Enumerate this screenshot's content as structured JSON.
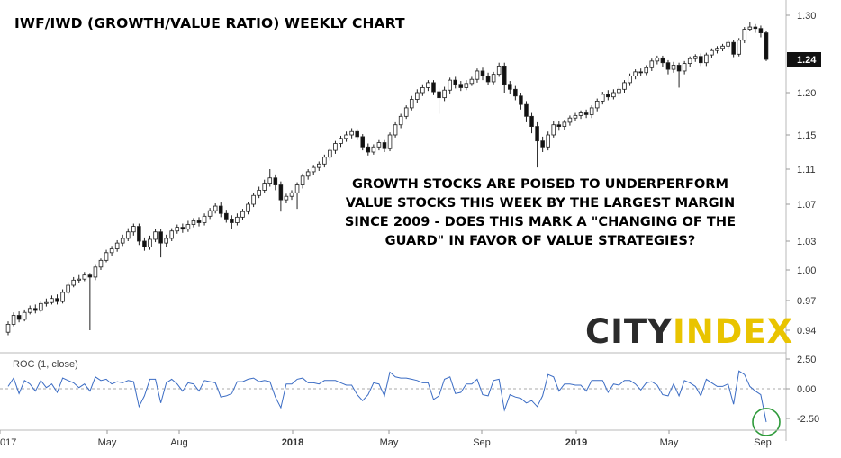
{
  "chart_data": [
    {
      "type": "candlestick",
      "title": "IWF/IWD (GROWTH/VALUE RATIO) WEEKLY CHART",
      "y_ticks": [
        0.94,
        0.97,
        1.0,
        1.03,
        1.07,
        1.11,
        1.15,
        1.2,
        1.3
      ],
      "last_value_label": "1.24",
      "x_ticks": [
        "017",
        "May",
        "Aug",
        "2018",
        "May",
        "Sep",
        "2019",
        "May",
        "Sep"
      ],
      "annotation": [
        "GROWTH STOCKS ARE POISED TO UNDERPERFORM",
        "VALUE STOCKS THIS WEEK BY THE LARGEST MARGIN",
        "SINCE 2009 - DOES THIS MARK A \"CHANGING OF THE",
        "GUARD\" IN FAVOR OF VALUE STRATEGIES?"
      ],
      "logo": {
        "part1": "CITY",
        "part2": "INDEX",
        "color_dark": "#2b2b2b",
        "color_accent": "#e9c400"
      },
      "candles": [
        {
          "o": 0.938,
          "c": 0.946,
          "h": 0.949,
          "l": 0.935
        },
        {
          "o": 0.946,
          "c": 0.955,
          "h": 0.958,
          "l": 0.944
        },
        {
          "o": 0.955,
          "c": 0.951,
          "h": 0.959,
          "l": 0.948
        },
        {
          "o": 0.951,
          "c": 0.958,
          "h": 0.961,
          "l": 0.949
        },
        {
          "o": 0.958,
          "c": 0.962,
          "h": 0.965,
          "l": 0.956
        },
        {
          "o": 0.962,
          "c": 0.96,
          "h": 0.966,
          "l": 0.957
        },
        {
          "o": 0.96,
          "c": 0.967,
          "h": 0.969,
          "l": 0.958
        },
        {
          "o": 0.967,
          "c": 0.968,
          "h": 0.972,
          "l": 0.964
        },
        {
          "o": 0.968,
          "c": 0.972,
          "h": 0.975,
          "l": 0.966
        },
        {
          "o": 0.972,
          "c": 0.969,
          "h": 0.976,
          "l": 0.966
        },
        {
          "o": 0.969,
          "c": 0.978,
          "h": 0.981,
          "l": 0.967
        },
        {
          "o": 0.978,
          "c": 0.985,
          "h": 0.988,
          "l": 0.976
        },
        {
          "o": 0.985,
          "c": 0.99,
          "h": 0.993,
          "l": 0.983
        },
        {
          "o": 0.99,
          "c": 0.991,
          "h": 0.995,
          "l": 0.987
        },
        {
          "o": 0.991,
          "c": 0.995,
          "h": 0.998,
          "l": 0.989
        },
        {
          "o": 0.995,
          "c": 0.993,
          "h": 0.997,
          "l": 0.94
        },
        {
          "o": 0.993,
          "c": 1.003,
          "h": 1.006,
          "l": 0.99
        },
        {
          "o": 1.003,
          "c": 1.01,
          "h": 1.012,
          "l": 1.0
        },
        {
          "o": 1.01,
          "c": 1.018,
          "h": 1.021,
          "l": 1.008
        },
        {
          "o": 1.018,
          "c": 1.022,
          "h": 1.025,
          "l": 1.015
        },
        {
          "o": 1.022,
          "c": 1.028,
          "h": 1.031,
          "l": 1.019
        },
        {
          "o": 1.028,
          "c": 1.033,
          "h": 1.037,
          "l": 1.025
        },
        {
          "o": 1.033,
          "c": 1.04,
          "h": 1.044,
          "l": 1.03
        },
        {
          "o": 1.04,
          "c": 1.046,
          "h": 1.049,
          "l": 1.036
        },
        {
          "o": 1.046,
          "c": 1.03,
          "h": 1.049,
          "l": 1.026
        },
        {
          "o": 1.03,
          "c": 1.024,
          "h": 1.034,
          "l": 1.02
        },
        {
          "o": 1.024,
          "c": 1.032,
          "h": 1.036,
          "l": 1.021
        },
        {
          "o": 1.032,
          "c": 1.04,
          "h": 1.043,
          "l": 1.029
        },
        {
          "o": 1.04,
          "c": 1.028,
          "h": 1.043,
          "l": 1.013
        },
        {
          "o": 1.028,
          "c": 1.033,
          "h": 1.037,
          "l": 1.024
        },
        {
          "o": 1.033,
          "c": 1.041,
          "h": 1.044,
          "l": 1.03
        },
        {
          "o": 1.041,
          "c": 1.045,
          "h": 1.048,
          "l": 1.038
        },
        {
          "o": 1.045,
          "c": 1.043,
          "h": 1.049,
          "l": 1.039
        },
        {
          "o": 1.043,
          "c": 1.048,
          "h": 1.052,
          "l": 1.04
        },
        {
          "o": 1.048,
          "c": 1.052,
          "h": 1.055,
          "l": 1.045
        },
        {
          "o": 1.052,
          "c": 1.05,
          "h": 1.056,
          "l": 1.046
        },
        {
          "o": 1.05,
          "c": 1.057,
          "h": 1.06,
          "l": 1.047
        },
        {
          "o": 1.057,
          "c": 1.063,
          "h": 1.066,
          "l": 1.054
        },
        {
          "o": 1.063,
          "c": 1.068,
          "h": 1.071,
          "l": 1.06
        },
        {
          "o": 1.068,
          "c": 1.06,
          "h": 1.072,
          "l": 1.056
        },
        {
          "o": 1.06,
          "c": 1.054,
          "h": 1.064,
          "l": 1.05
        },
        {
          "o": 1.054,
          "c": 1.05,
          "h": 1.058,
          "l": 1.043
        },
        {
          "o": 1.05,
          "c": 1.056,
          "h": 1.06,
          "l": 1.047
        },
        {
          "o": 1.056,
          "c": 1.062,
          "h": 1.065,
          "l": 1.053
        },
        {
          "o": 1.062,
          "c": 1.07,
          "h": 1.073,
          "l": 1.059
        },
        {
          "o": 1.07,
          "c": 1.08,
          "h": 1.083,
          "l": 1.067
        },
        {
          "o": 1.08,
          "c": 1.086,
          "h": 1.09,
          "l": 1.077
        },
        {
          "o": 1.086,
          "c": 1.094,
          "h": 1.098,
          "l": 1.083
        },
        {
          "o": 1.094,
          "c": 1.1,
          "h": 1.11,
          "l": 1.09
        },
        {
          "o": 1.1,
          "c": 1.092,
          "h": 1.104,
          "l": 1.086
        },
        {
          "o": 1.092,
          "c": 1.075,
          "h": 1.096,
          "l": 1.062
        },
        {
          "o": 1.075,
          "c": 1.079,
          "h": 1.082,
          "l": 1.071
        },
        {
          "o": 1.079,
          "c": 1.083,
          "h": 1.086,
          "l": 1.075
        },
        {
          "o": 1.083,
          "c": 1.092,
          "h": 1.095,
          "l": 1.065
        },
        {
          "o": 1.092,
          "c": 1.102,
          "h": 1.105,
          "l": 1.088
        },
        {
          "o": 1.102,
          "c": 1.107,
          "h": 1.11,
          "l": 1.098
        },
        {
          "o": 1.107,
          "c": 1.112,
          "h": 1.115,
          "l": 1.103
        },
        {
          "o": 1.112,
          "c": 1.116,
          "h": 1.119,
          "l": 1.108
        },
        {
          "o": 1.116,
          "c": 1.124,
          "h": 1.127,
          "l": 1.112
        },
        {
          "o": 1.124,
          "c": 1.132,
          "h": 1.135,
          "l": 1.12
        },
        {
          "o": 1.132,
          "c": 1.14,
          "h": 1.143,
          "l": 1.128
        },
        {
          "o": 1.14,
          "c": 1.146,
          "h": 1.149,
          "l": 1.136
        },
        {
          "o": 1.146,
          "c": 1.15,
          "h": 1.154,
          "l": 1.142
        },
        {
          "o": 1.15,
          "c": 1.154,
          "h": 1.158,
          "l": 1.146
        },
        {
          "o": 1.154,
          "c": 1.148,
          "h": 1.157,
          "l": 1.144
        },
        {
          "o": 1.148,
          "c": 1.136,
          "h": 1.151,
          "l": 1.132
        },
        {
          "o": 1.136,
          "c": 1.13,
          "h": 1.14,
          "l": 1.126
        },
        {
          "o": 1.13,
          "c": 1.136,
          "h": 1.139,
          "l": 1.127
        },
        {
          "o": 1.136,
          "c": 1.141,
          "h": 1.144,
          "l": 1.132
        },
        {
          "o": 1.141,
          "c": 1.134,
          "h": 1.144,
          "l": 1.13
        },
        {
          "o": 1.134,
          "c": 1.15,
          "h": 1.153,
          "l": 1.131
        },
        {
          "o": 1.15,
          "c": 1.162,
          "h": 1.165,
          "l": 1.147
        },
        {
          "o": 1.162,
          "c": 1.172,
          "h": 1.175,
          "l": 1.158
        },
        {
          "o": 1.172,
          "c": 1.182,
          "h": 1.185,
          "l": 1.169
        },
        {
          "o": 1.182,
          "c": 1.192,
          "h": 1.196,
          "l": 1.179
        },
        {
          "o": 1.192,
          "c": 1.2,
          "h": 1.204,
          "l": 1.188
        },
        {
          "o": 1.2,
          "c": 1.206,
          "h": 1.21,
          "l": 1.196
        },
        {
          "o": 1.206,
          "c": 1.212,
          "h": 1.215,
          "l": 1.202
        },
        {
          "o": 1.212,
          "c": 1.201,
          "h": 1.215,
          "l": 1.197
        },
        {
          "o": 1.201,
          "c": 1.194,
          "h": 1.205,
          "l": 1.175
        },
        {
          "o": 1.194,
          "c": 1.203,
          "h": 1.207,
          "l": 1.19
        },
        {
          "o": 1.203,
          "c": 1.215,
          "h": 1.218,
          "l": 1.199
        },
        {
          "o": 1.215,
          "c": 1.21,
          "h": 1.219,
          "l": 1.205
        },
        {
          "o": 1.21,
          "c": 1.206,
          "h": 1.214,
          "l": 1.202
        },
        {
          "o": 1.206,
          "c": 1.211,
          "h": 1.215,
          "l": 1.203
        },
        {
          "o": 1.211,
          "c": 1.216,
          "h": 1.219,
          "l": 1.208
        },
        {
          "o": 1.216,
          "c": 1.226,
          "h": 1.229,
          "l": 1.212
        },
        {
          "o": 1.226,
          "c": 1.22,
          "h": 1.23,
          "l": 1.215
        },
        {
          "o": 1.22,
          "c": 1.213,
          "h": 1.224,
          "l": 1.209
        },
        {
          "o": 1.213,
          "c": 1.222,
          "h": 1.225,
          "l": 1.21
        },
        {
          "o": 1.222,
          "c": 1.232,
          "h": 1.236,
          "l": 1.219
        },
        {
          "o": 1.232,
          "c": 1.21,
          "h": 1.236,
          "l": 1.2
        },
        {
          "o": 1.21,
          "c": 1.204,
          "h": 1.214,
          "l": 1.198
        },
        {
          "o": 1.204,
          "c": 1.196,
          "h": 1.208,
          "l": 1.191
        },
        {
          "o": 1.196,
          "c": 1.186,
          "h": 1.2,
          "l": 1.18
        },
        {
          "o": 1.186,
          "c": 1.172,
          "h": 1.19,
          "l": 1.165
        },
        {
          "o": 1.172,
          "c": 1.16,
          "h": 1.176,
          "l": 1.152
        },
        {
          "o": 1.16,
          "c": 1.143,
          "h": 1.165,
          "l": 1.112
        },
        {
          "o": 1.143,
          "c": 1.136,
          "h": 1.148,
          "l": 1.13
        },
        {
          "o": 1.136,
          "c": 1.15,
          "h": 1.154,
          "l": 1.132
        },
        {
          "o": 1.15,
          "c": 1.162,
          "h": 1.166,
          "l": 1.147
        },
        {
          "o": 1.162,
          "c": 1.16,
          "h": 1.166,
          "l": 1.155
        },
        {
          "o": 1.16,
          "c": 1.165,
          "h": 1.168,
          "l": 1.156
        },
        {
          "o": 1.165,
          "c": 1.17,
          "h": 1.173,
          "l": 1.161
        },
        {
          "o": 1.17,
          "c": 1.173,
          "h": 1.176,
          "l": 1.166
        },
        {
          "o": 1.173,
          "c": 1.176,
          "h": 1.179,
          "l": 1.169
        },
        {
          "o": 1.176,
          "c": 1.174,
          "h": 1.18,
          "l": 1.17
        },
        {
          "o": 1.174,
          "c": 1.182,
          "h": 1.185,
          "l": 1.17
        },
        {
          "o": 1.182,
          "c": 1.19,
          "h": 1.193,
          "l": 1.178
        },
        {
          "o": 1.19,
          "c": 1.198,
          "h": 1.201,
          "l": 1.186
        },
        {
          "o": 1.198,
          "c": 1.195,
          "h": 1.203,
          "l": 1.191
        },
        {
          "o": 1.195,
          "c": 1.2,
          "h": 1.204,
          "l": 1.192
        },
        {
          "o": 1.2,
          "c": 1.204,
          "h": 1.207,
          "l": 1.196
        },
        {
          "o": 1.204,
          "c": 1.212,
          "h": 1.215,
          "l": 1.2
        },
        {
          "o": 1.212,
          "c": 1.22,
          "h": 1.223,
          "l": 1.208
        },
        {
          "o": 1.22,
          "c": 1.225,
          "h": 1.228,
          "l": 1.216
        },
        {
          "o": 1.225,
          "c": 1.224,
          "h": 1.229,
          "l": 1.22
        },
        {
          "o": 1.224,
          "c": 1.23,
          "h": 1.233,
          "l": 1.221
        },
        {
          "o": 1.23,
          "c": 1.238,
          "h": 1.241,
          "l": 1.226
        },
        {
          "o": 1.238,
          "c": 1.242,
          "h": 1.245,
          "l": 1.234
        },
        {
          "o": 1.242,
          "c": 1.236,
          "h": 1.245,
          "l": 1.231
        },
        {
          "o": 1.236,
          "c": 1.228,
          "h": 1.239,
          "l": 1.222
        },
        {
          "o": 1.228,
          "c": 1.233,
          "h": 1.237,
          "l": 1.224
        },
        {
          "o": 1.233,
          "c": 1.226,
          "h": 1.236,
          "l": 1.206
        },
        {
          "o": 1.226,
          "c": 1.235,
          "h": 1.238,
          "l": 1.222
        },
        {
          "o": 1.235,
          "c": 1.241,
          "h": 1.244,
          "l": 1.231
        },
        {
          "o": 1.241,
          "c": 1.244,
          "h": 1.247,
          "l": 1.237
        },
        {
          "o": 1.244,
          "c": 1.236,
          "h": 1.248,
          "l": 1.232
        },
        {
          "o": 1.236,
          "c": 1.246,
          "h": 1.249,
          "l": 1.232
        },
        {
          "o": 1.246,
          "c": 1.252,
          "h": 1.255,
          "l": 1.242
        },
        {
          "o": 1.252,
          "c": 1.255,
          "h": 1.258,
          "l": 1.248
        },
        {
          "o": 1.255,
          "c": 1.258,
          "h": 1.261,
          "l": 1.251
        },
        {
          "o": 1.258,
          "c": 1.263,
          "h": 1.266,
          "l": 1.254
        },
        {
          "o": 1.263,
          "c": 1.247,
          "h": 1.266,
          "l": 1.243
        },
        {
          "o": 1.247,
          "c": 1.266,
          "h": 1.269,
          "l": 1.244
        },
        {
          "o": 1.266,
          "c": 1.281,
          "h": 1.284,
          "l": 1.262
        },
        {
          "o": 1.281,
          "c": 1.284,
          "h": 1.291,
          "l": 1.278
        },
        {
          "o": 1.284,
          "c": 1.282,
          "h": 1.288,
          "l": 1.276
        },
        {
          "o": 1.282,
          "c": 1.276,
          "h": 1.286,
          "l": 1.27
        },
        {
          "o": 1.276,
          "c": 1.24,
          "h": 1.278,
          "l": 1.238
        }
      ]
    },
    {
      "type": "line",
      "title": "ROC (1, close)",
      "y_ticks": [
        2.5,
        0.0,
        -2.5
      ],
      "ylim": [
        -3.2,
        2.9
      ],
      "color": "#3b6cc4",
      "highlight_color": "#2e9a3a",
      "values": [
        0.2,
        0.9,
        -0.4,
        0.7,
        0.4,
        -0.2,
        0.7,
        0.1,
        0.4,
        -0.3,
        0.9,
        0.7,
        0.5,
        0.1,
        0.4,
        -0.2,
        1.0,
        0.7,
        0.8,
        0.4,
        0.6,
        0.5,
        0.7,
        0.6,
        -1.5,
        -0.6,
        0.8,
        0.8,
        -1.2,
        0.5,
        0.8,
        0.4,
        -0.2,
        0.5,
        0.4,
        -0.2,
        0.7,
        0.6,
        0.5,
        -0.7,
        -0.6,
        -0.4,
        0.6,
        0.6,
        0.8,
        0.9,
        0.6,
        0.7,
        0.6,
        -0.7,
        -1.6,
        0.4,
        0.4,
        0.8,
        0.9,
        0.5,
        0.5,
        0.4,
        0.7,
        0.7,
        0.7,
        0.5,
        0.3,
        0.3,
        -0.5,
        -1.0,
        -0.5,
        0.5,
        0.4,
        -0.6,
        1.4,
        1.0,
        0.9,
        0.9,
        0.8,
        0.7,
        0.5,
        0.5,
        -0.9,
        -0.6,
        0.8,
        1.0,
        -0.4,
        -0.3,
        0.4,
        0.4,
        0.8,
        -0.5,
        -0.6,
        0.7,
        0.8,
        -1.8,
        -0.5,
        -0.7,
        -0.8,
        -1.2,
        -1.0,
        -1.5,
        -0.6,
        1.2,
        1.0,
        -0.2,
        0.4,
        0.4,
        0.3,
        0.3,
        -0.2,
        0.7,
        0.7,
        0.7,
        -0.3,
        0.4,
        0.3,
        0.7,
        0.7,
        0.4,
        -0.1,
        0.5,
        0.6,
        0.3,
        -0.5,
        -0.6,
        0.4,
        -0.6,
        0.7,
        0.5,
        0.2,
        -0.6,
        0.8,
        0.5,
        0.2,
        0.2,
        0.4,
        -1.3,
        1.5,
        1.2,
        0.2,
        -0.2,
        -0.5,
        -2.8
      ]
    }
  ]
}
